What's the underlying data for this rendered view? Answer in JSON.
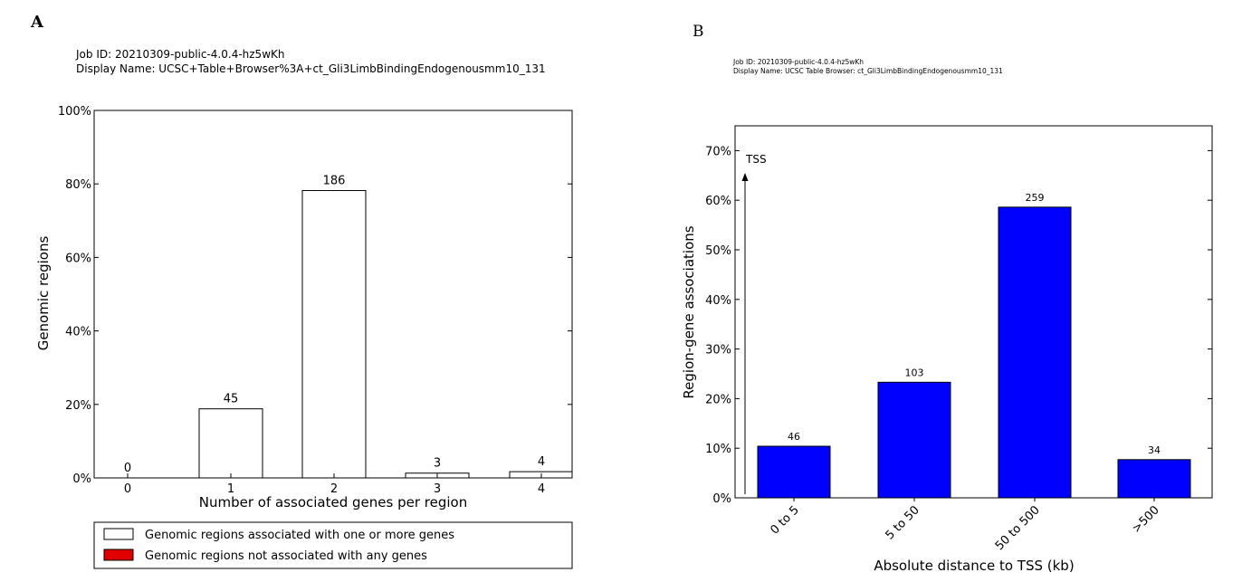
{
  "panels": {
    "a": {
      "letter": "A",
      "job_id": "Job ID: 20210309-public-4.0.4-hz5wKh",
      "display_name": "Display Name: UCSC+Table+Browser%3A+ct_Gli3LimbBindingEndogenousmm10_131"
    },
    "b": {
      "letter": "B",
      "job_id": "Job ID: 20210309-public-4.0.4-hz5wKh",
      "display_name": "Display Name: UCSC Table Browser: ct_Gli3LimbBindingEndogenousmm10_131",
      "tss_label": "TSS"
    }
  },
  "chart_data": [
    {
      "type": "bar",
      "xlabel": "Number of associated genes per region",
      "ylabel": "Genomic regions",
      "categories": [
        "0",
        "1",
        "2",
        "3",
        "4"
      ],
      "values": [
        0,
        18.8,
        78.2,
        1.3,
        1.7
      ],
      "labels": [
        "0",
        "45",
        "186",
        "3",
        "4"
      ],
      "label_colors": [
        "#e00000",
        "#000000",
        "#000000",
        "#000000",
        "#000000"
      ],
      "bar_fill": "#ffffff",
      "ylim": [
        0,
        100
      ],
      "yticks": [
        "0%",
        "20%",
        "40%",
        "60%",
        "80%",
        "100%"
      ],
      "grid": false,
      "legend_placement": "bottom",
      "legend": [
        {
          "label": "Genomic regions associated with one or more genes",
          "color": "#ffffff"
        },
        {
          "label": "Genomic regions not associated with any genes",
          "color": "#e00000"
        }
      ]
    },
    {
      "type": "bar",
      "xlabel": "Absolute distance to TSS (kb)",
      "ylabel": "Region-gene associations",
      "categories": [
        "0 to 5",
        "5 to 50",
        "50 to 500",
        ">500"
      ],
      "values": [
        10.4,
        23.3,
        58.6,
        7.7
      ],
      "labels": [
        "46",
        "103",
        "259",
        "34"
      ],
      "bar_fill": "#0000ff",
      "ylim": [
        0,
        75
      ],
      "yticks": [
        "0%",
        "10%",
        "20%",
        "30%",
        "40%",
        "50%",
        "60%",
        "70%"
      ],
      "grid": false
    }
  ]
}
